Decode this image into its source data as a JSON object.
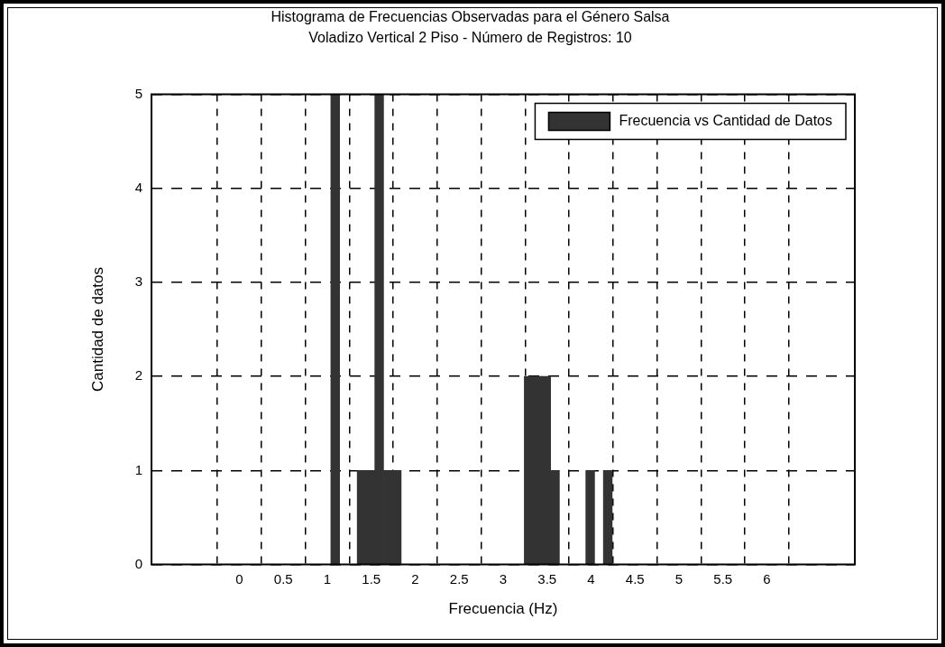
{
  "chart_data": {
    "type": "histogram",
    "title": "Histograma de Frecuencias Observadas para el Género Salsa",
    "subtitle": "Voladizo Vertical 2 Piso - Número de Registros: 10",
    "xlabel": "Frecuencia (Hz)",
    "ylabel": "Cantidad de datos",
    "bins": [
      1.04,
      1.14,
      1.24,
      1.34,
      1.44,
      1.54,
      1.64,
      1.74,
      1.84,
      1.94,
      2.04,
      2.14,
      2.24,
      2.34,
      2.44,
      2.54,
      2.64,
      2.74,
      2.84,
      2.94,
      3.04,
      3.14,
      3.24,
      3.34,
      3.44,
      3.54,
      3.64,
      3.74,
      3.84,
      3.94,
      4.04,
      4.14,
      4.24
    ],
    "series": [
      {
        "name": "Frecuencia vs Cantidad de Datos",
        "color": "#333333",
        "values": [
          5,
          0,
          0,
          1,
          1,
          5,
          1,
          1,
          0,
          0,
          0,
          0,
          0,
          0,
          0,
          0,
          0,
          0,
          0,
          0,
          0,
          0,
          2,
          2,
          2,
          1,
          0,
          0,
          0,
          1,
          0,
          1
        ]
      }
    ],
    "xlim": [
      -1,
      7
    ],
    "xticks": [
      0,
      {
        "value": 0.5,
        "label": "0.5"
      },
      1,
      {
        "value": 1.5,
        "label": "1.5"
      },
      2,
      {
        "value": 2.5,
        "label": "2.5"
      },
      3,
      {
        "value": 3.5,
        "label": "3.5"
      },
      4,
      {
        "value": 4.5,
        "label": "4.5"
      },
      5,
      {
        "value": 5.5,
        "label": "5.5"
      },
      6
    ],
    "ylim": [
      0,
      5
    ],
    "yticks": [
      0,
      1,
      2,
      3,
      4,
      5
    ],
    "grid": true,
    "legend": "top right"
  }
}
